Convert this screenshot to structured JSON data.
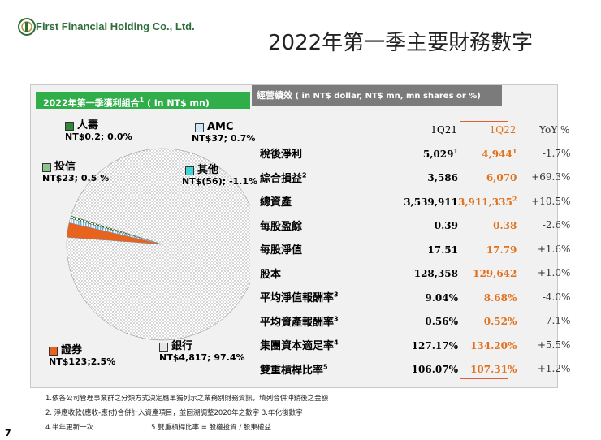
{
  "company": "First Financial Holding Co., Ltd.",
  "title": "2022年第一季主要財務數字",
  "left_panel": {
    "header_main": "2022年第一季獲利組合",
    "header_sup": "1",
    "header_unit": " ( in NT$ mn)"
  },
  "right_panel": {
    "header_main": "經營績效",
    "header_unit": " ( in NT$ dollar, NT$ mn, mn shares or %)"
  },
  "pie_legend": {
    "life": {
      "name": "人壽",
      "value": "NT$0.2; 0.0%"
    },
    "amc": {
      "name": "AMC",
      "value": "NT$37; 0.7%"
    },
    "invest": {
      "name": "投信",
      "value": "NT$23; 0.5 %"
    },
    "other": {
      "name": "其他",
      "value": "NT$(56); -1.1%"
    },
    "securities": {
      "name": "證券",
      "value": "NT$123;2.5%"
    },
    "bank": {
      "name": "銀行",
      "value": "NT$4,817; 97.4%"
    }
  },
  "chart_data": {
    "type": "pie",
    "title": "2022年第一季獲利組合",
    "unit": "NT$ mn",
    "slices": [
      {
        "label": "銀行",
        "value": 4817,
        "percent": 97.4
      },
      {
        "label": "證券",
        "value": 123,
        "percent": 2.5
      },
      {
        "label": "AMC",
        "value": 37,
        "percent": 0.7
      },
      {
        "label": "投信",
        "value": 23,
        "percent": 0.5
      },
      {
        "label": "人壽",
        "value": 0.2,
        "percent": 0.0
      },
      {
        "label": "其他",
        "value": -56,
        "percent": -1.1
      }
    ]
  },
  "table": {
    "headers": {
      "q21": "1Q21",
      "q22": "1Q22",
      "yoy": "YoY  %"
    },
    "rows": [
      {
        "label": "稅後淨利",
        "label_sup": "",
        "q21": "5,029",
        "q21_sup": "1",
        "q22": "4,944",
        "q22_sup": "1",
        "yoy": "-1.7%"
      },
      {
        "label": "綜合損益",
        "label_sup": "2",
        "q21": "3,586",
        "q21_sup": "",
        "q22": "6,070",
        "q22_sup": "",
        "yoy": "+69.3%"
      },
      {
        "label": "總資產",
        "label_sup": "",
        "q21": "3,539,911",
        "q21_sup": "",
        "q22": "3,911,335",
        "q22_sup": "2",
        "yoy": "+10.5%"
      },
      {
        "label": "每股盈餘",
        "label_sup": "",
        "q21": "0.39",
        "q21_sup": "",
        "q22": "0.38",
        "q22_sup": "",
        "yoy": "-2.6%"
      },
      {
        "label": "每股淨值",
        "label_sup": "",
        "q21": "17.51",
        "q21_sup": "",
        "q22": "17.79",
        "q22_sup": "",
        "yoy": "+1.6%"
      },
      {
        "label": "股本",
        "label_sup": "",
        "q21": "128,358",
        "q21_sup": "",
        "q22": "129,642",
        "q22_sup": "",
        "yoy": "+1.0%"
      },
      {
        "label": "平均淨值報酬率",
        "label_sup": "3",
        "q21": "9.04%",
        "q21_sup": "",
        "q22": "8.68%",
        "q22_sup": "",
        "yoy": "-4.0%"
      },
      {
        "label": "平均資產報酬率",
        "label_sup": "3",
        "q21": "0.56%",
        "q21_sup": "",
        "q22": "0.52%",
        "q22_sup": "",
        "yoy": "-7.1%"
      },
      {
        "label": "集團資本適足率",
        "label_sup": "4",
        "q21": "127.17%",
        "q21_sup": "",
        "q22": "134.20%",
        "q22_sup": "",
        "yoy": "+5.5%"
      },
      {
        "label": "雙重槓桿比率",
        "label_sup": "5",
        "q21": "106.07%",
        "q21_sup": "",
        "q22": "107.31%",
        "q22_sup": "",
        "yoy": "+1.2%"
      }
    ]
  },
  "footnotes": {
    "f1": "1.依各公司管理事業群之分類方式決定應單獨列示之業務別財務資訊，填列合併沖銷後之金額",
    "f2": "2. 淨應收款(應收-應付)合併計入資產項目，並回溯調整2020年之數字  3.年化後數字",
    "f4": "4.半年更新一次",
    "f5": "5.雙重槓桿比率 = 股權投資 / 股東權益"
  },
  "page_number": "7",
  "colors": {
    "accent_green": "#2fae4a",
    "orange": "#e2711d",
    "red_box": "#e55a3a",
    "header_gray": "#7b7b7b"
  }
}
